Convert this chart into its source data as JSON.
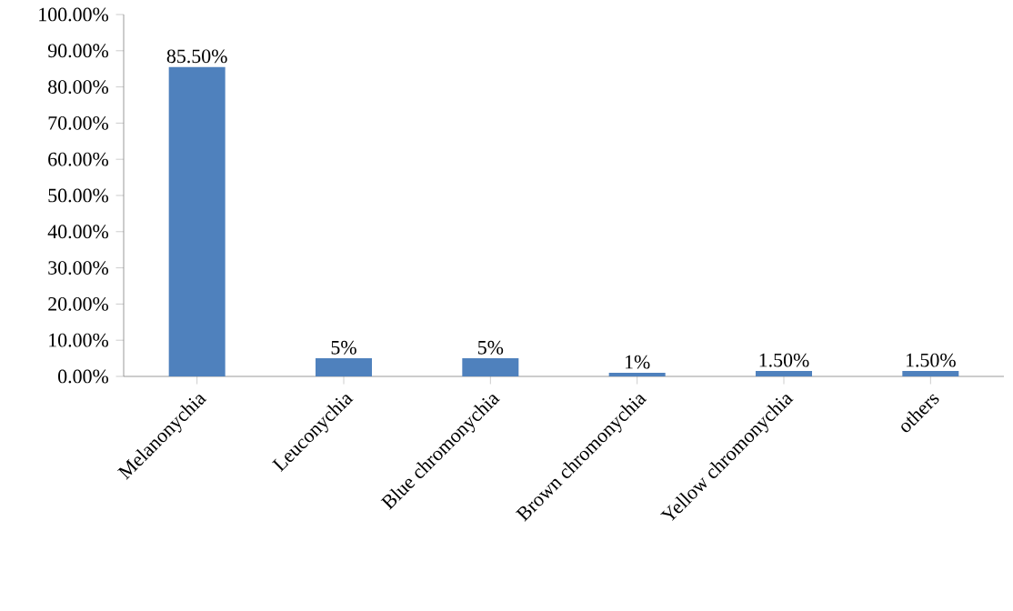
{
  "chart_data": {
    "type": "bar",
    "categories": [
      "Melanonychia",
      "Leuconychia",
      "Blue chromonychia",
      "Brown chromonychia",
      "Yellow chromonychia",
      "others"
    ],
    "values": [
      85.5,
      5,
      5,
      1,
      1.5,
      1.5
    ],
    "value_labels": [
      "85.50%",
      "5%",
      "5%",
      "1%",
      "1.50%",
      "1.50%"
    ],
    "color": "#4f81bd",
    "ylim": [
      0,
      100
    ],
    "yticks": [
      {
        "value": 0,
        "label": "0.00%"
      },
      {
        "value": 10,
        "label": "10.00%"
      },
      {
        "value": 20,
        "label": "20.00%"
      },
      {
        "value": 30,
        "label": "30.00%"
      },
      {
        "value": 40,
        "label": "40.00%"
      },
      {
        "value": 50,
        "label": "50.00%"
      },
      {
        "value": 60,
        "label": "60.00%"
      },
      {
        "value": 70,
        "label": "70.00%"
      },
      {
        "value": 80,
        "label": "80.00%"
      },
      {
        "value": 90,
        "label": "90.00%"
      },
      {
        "value": 100,
        "label": "100.00%"
      }
    ],
    "grid": false
  }
}
